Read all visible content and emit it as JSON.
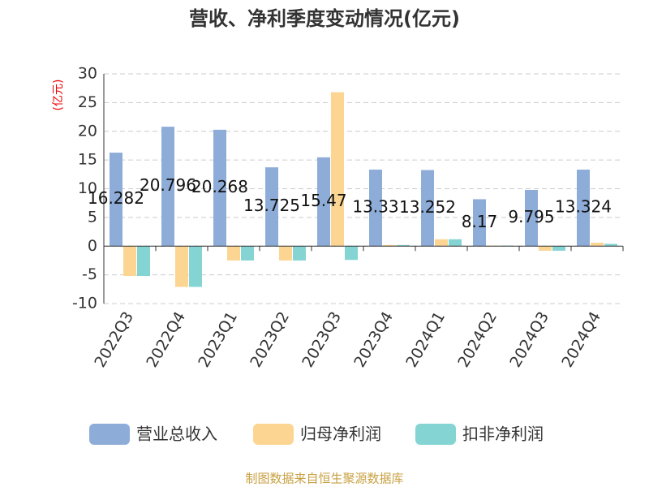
{
  "chart_data": {
    "type": "bar",
    "title": "营收、净利季度变动情况(亿元)",
    "y_label": "(亿元)",
    "categories": [
      "2022Q3",
      "2022Q4",
      "2023Q1",
      "2023Q2",
      "2023Q3",
      "2023Q4",
      "2024Q1",
      "2024Q2",
      "2024Q3",
      "2024Q4"
    ],
    "series": [
      {
        "name": "营业总收入",
        "color": "#8eacd8",
        "values": [
          16.282,
          20.796,
          20.268,
          13.725,
          15.47,
          13.33,
          13.252,
          8.17,
          9.795,
          13.324
        ]
      },
      {
        "name": "归母净利润",
        "color": "#fcd592",
        "values": [
          -5.2,
          -7.1,
          -2.5,
          -2.5,
          26.8,
          0.2,
          1.2,
          0.1,
          -0.8,
          0.6
        ]
      },
      {
        "name": "扣非净利润",
        "color": "#84d4d4",
        "values": [
          -5.2,
          -7.1,
          -2.5,
          -2.5,
          -2.4,
          0.2,
          1.2,
          0.1,
          -0.8,
          0.4
        ]
      }
    ],
    "labeled_series": 0,
    "ylim": [
      -10,
      30
    ],
    "yticks": [
      -10,
      -5,
      0,
      5,
      10,
      15,
      20,
      25,
      30
    ],
    "grid": true,
    "source": "制图数据来自恒生聚源数据库"
  }
}
